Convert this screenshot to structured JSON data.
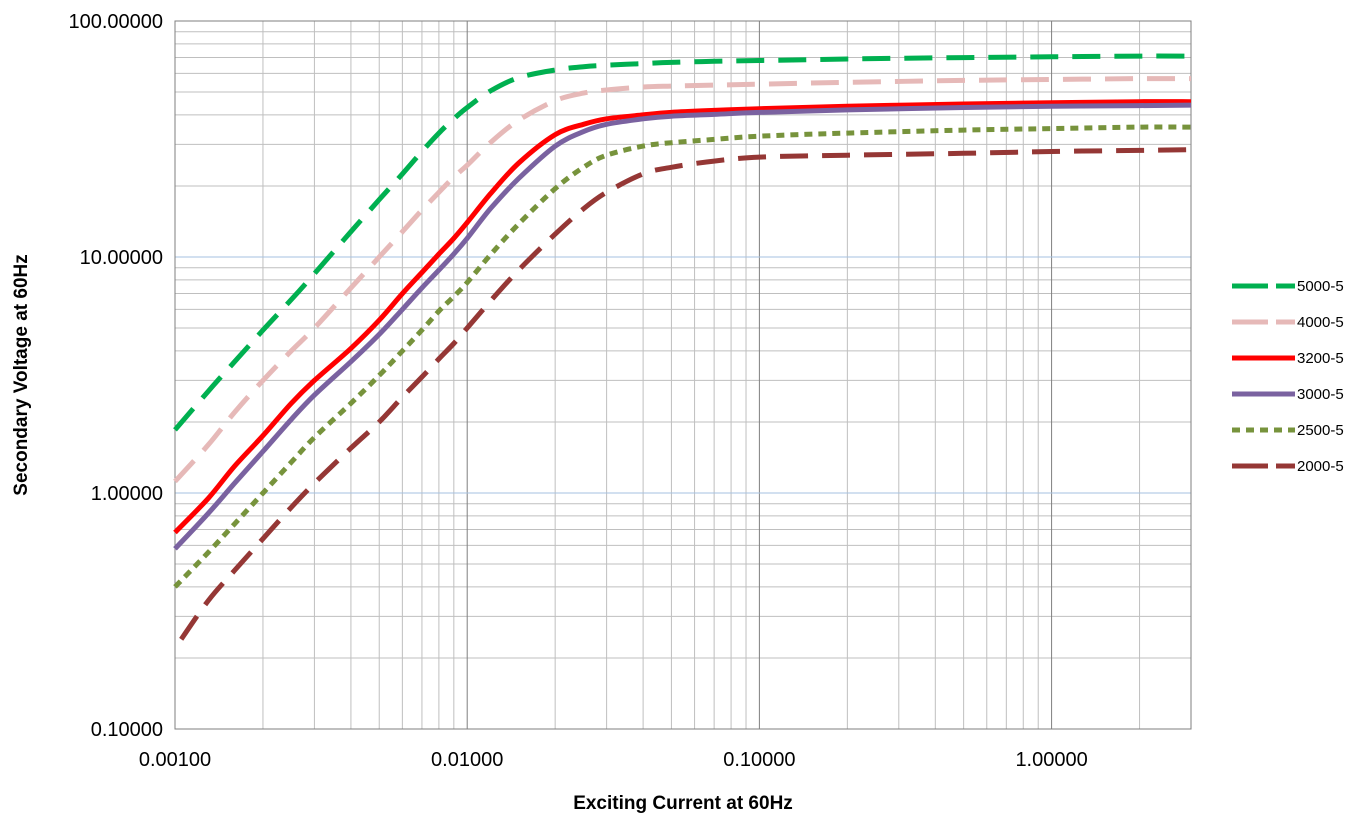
{
  "chart_data": {
    "type": "line",
    "title": "",
    "xlabel": "Exciting Current at 60Hz",
    "ylabel": "Secondary Voltage at 60Hz",
    "x_scale": "log",
    "y_scale": "log",
    "xlim": [
      0.001,
      3.0
    ],
    "ylim": [
      0.1,
      100
    ],
    "x_ticks": [
      0.001,
      0.01,
      0.1,
      1
    ],
    "x_tick_labels": [
      "0.00100",
      "0.01000",
      "0.10000",
      "1.00000"
    ],
    "y_ticks": [
      0.1,
      1,
      10,
      100
    ],
    "y_tick_labels": [
      "0.10000",
      "1.00000",
      "10.00000",
      "100.00000"
    ],
    "grid": true,
    "legend_position": "right",
    "colors": {
      "major_grid_x": "#7f7f7f",
      "major_grid_y": "#a6c1e0",
      "minor_grid": "#bfbfbf"
    },
    "series": [
      {
        "name": "5000-5",
        "color": "#00b050",
        "style": "long-dash",
        "x": [
          0.001,
          0.0013,
          0.0016,
          0.002,
          0.0025,
          0.003,
          0.004,
          0.005,
          0.006,
          0.007,
          0.008,
          0.009,
          0.01,
          0.012,
          0.015,
          0.02,
          0.025,
          0.03,
          0.04,
          0.05,
          0.07,
          0.1,
          0.2,
          0.5,
          1.0,
          2.0,
          3.0
        ],
        "y": [
          1.85,
          2.7,
          3.6,
          4.9,
          6.6,
          8.5,
          12.8,
          17.5,
          22.5,
          28.0,
          33.5,
          38.5,
          43.0,
          50.5,
          57.5,
          62.0,
          64.0,
          65.0,
          66.0,
          66.8,
          67.5,
          68.0,
          69.0,
          70.0,
          70.5,
          71.0,
          71.0
        ]
      },
      {
        "name": "4000-5",
        "color": "#e6b9b8",
        "style": "long-dash",
        "x": [
          0.001,
          0.0013,
          0.0016,
          0.002,
          0.0025,
          0.003,
          0.004,
          0.005,
          0.006,
          0.007,
          0.008,
          0.009,
          0.01,
          0.012,
          0.015,
          0.02,
          0.025,
          0.03,
          0.04,
          0.05,
          0.07,
          0.1,
          0.2,
          0.5,
          1.0,
          2.0,
          3.0
        ],
        "y": [
          1.12,
          1.6,
          2.2,
          3.0,
          4.0,
          5.0,
          7.4,
          10.0,
          12.8,
          15.8,
          18.8,
          21.8,
          24.5,
          30.5,
          38.0,
          46.0,
          49.5,
          51.0,
          52.5,
          53.0,
          53.5,
          54.0,
          55.0,
          56.0,
          56.5,
          57.0,
          57.0
        ]
      },
      {
        "name": "3200-5",
        "color": "#ff0000",
        "style": "solid",
        "x": [
          0.001,
          0.0013,
          0.0016,
          0.002,
          0.0025,
          0.003,
          0.004,
          0.005,
          0.006,
          0.007,
          0.008,
          0.009,
          0.01,
          0.012,
          0.015,
          0.02,
          0.025,
          0.03,
          0.04,
          0.05,
          0.07,
          0.1,
          0.2,
          0.5,
          1.0,
          2.0,
          3.0
        ],
        "y": [
          0.68,
          0.95,
          1.3,
          1.75,
          2.4,
          3.0,
          4.1,
          5.4,
          7.0,
          8.6,
          10.3,
          12.0,
          14.0,
          18.5,
          25.0,
          33.0,
          36.5,
          38.5,
          40.0,
          41.0,
          41.8,
          42.5,
          43.5,
          44.5,
          45.0,
          45.5,
          45.5
        ]
      },
      {
        "name": "3000-5",
        "color": "#7a62a0",
        "style": "solid",
        "x": [
          0.001,
          0.0013,
          0.0016,
          0.002,
          0.0025,
          0.003,
          0.004,
          0.005,
          0.006,
          0.007,
          0.008,
          0.009,
          0.01,
          0.012,
          0.015,
          0.02,
          0.025,
          0.03,
          0.04,
          0.05,
          0.07,
          0.1,
          0.2,
          0.5,
          1.0,
          2.0,
          3.0
        ],
        "y": [
          0.58,
          0.82,
          1.1,
          1.5,
          2.05,
          2.6,
          3.6,
          4.7,
          6.0,
          7.4,
          8.8,
          10.3,
          12.0,
          16.0,
          21.5,
          29.5,
          34.0,
          36.5,
          38.5,
          39.5,
          40.2,
          41.0,
          42.0,
          43.0,
          43.5,
          43.8,
          44.0
        ]
      },
      {
        "name": "2500-5",
        "color": "#77933c",
        "style": "short-dash",
        "x": [
          0.001,
          0.0013,
          0.0016,
          0.002,
          0.0025,
          0.003,
          0.004,
          0.005,
          0.006,
          0.007,
          0.008,
          0.009,
          0.01,
          0.012,
          0.015,
          0.02,
          0.025,
          0.03,
          0.04,
          0.05,
          0.07,
          0.1,
          0.2,
          0.5,
          1.0,
          2.0,
          3.0
        ],
        "y": [
          0.4,
          0.56,
          0.74,
          1.0,
          1.35,
          1.72,
          2.4,
          3.15,
          4.0,
          4.9,
          5.9,
          6.8,
          7.8,
          10.2,
          13.8,
          19.5,
          24.0,
          27.0,
          29.5,
          30.5,
          31.5,
          32.5,
          33.5,
          34.5,
          35.0,
          35.5,
          35.5
        ]
      },
      {
        "name": "2000-5",
        "color": "#953735",
        "style": "long-dash",
        "x": [
          0.00105,
          0.0013,
          0.0016,
          0.002,
          0.0025,
          0.003,
          0.004,
          0.005,
          0.006,
          0.007,
          0.008,
          0.009,
          0.01,
          0.012,
          0.015,
          0.02,
          0.025,
          0.03,
          0.04,
          0.05,
          0.07,
          0.1,
          0.2,
          0.5,
          1.0,
          2.0,
          3.0
        ],
        "y": [
          0.24,
          0.35,
          0.47,
          0.64,
          0.87,
          1.1,
          1.55,
          2.0,
          2.55,
          3.1,
          3.7,
          4.3,
          5.0,
          6.5,
          8.8,
          12.5,
          16.0,
          18.8,
          22.5,
          24.0,
          25.5,
          26.5,
          27.0,
          27.5,
          28.0,
          28.3,
          28.5
        ]
      }
    ]
  }
}
